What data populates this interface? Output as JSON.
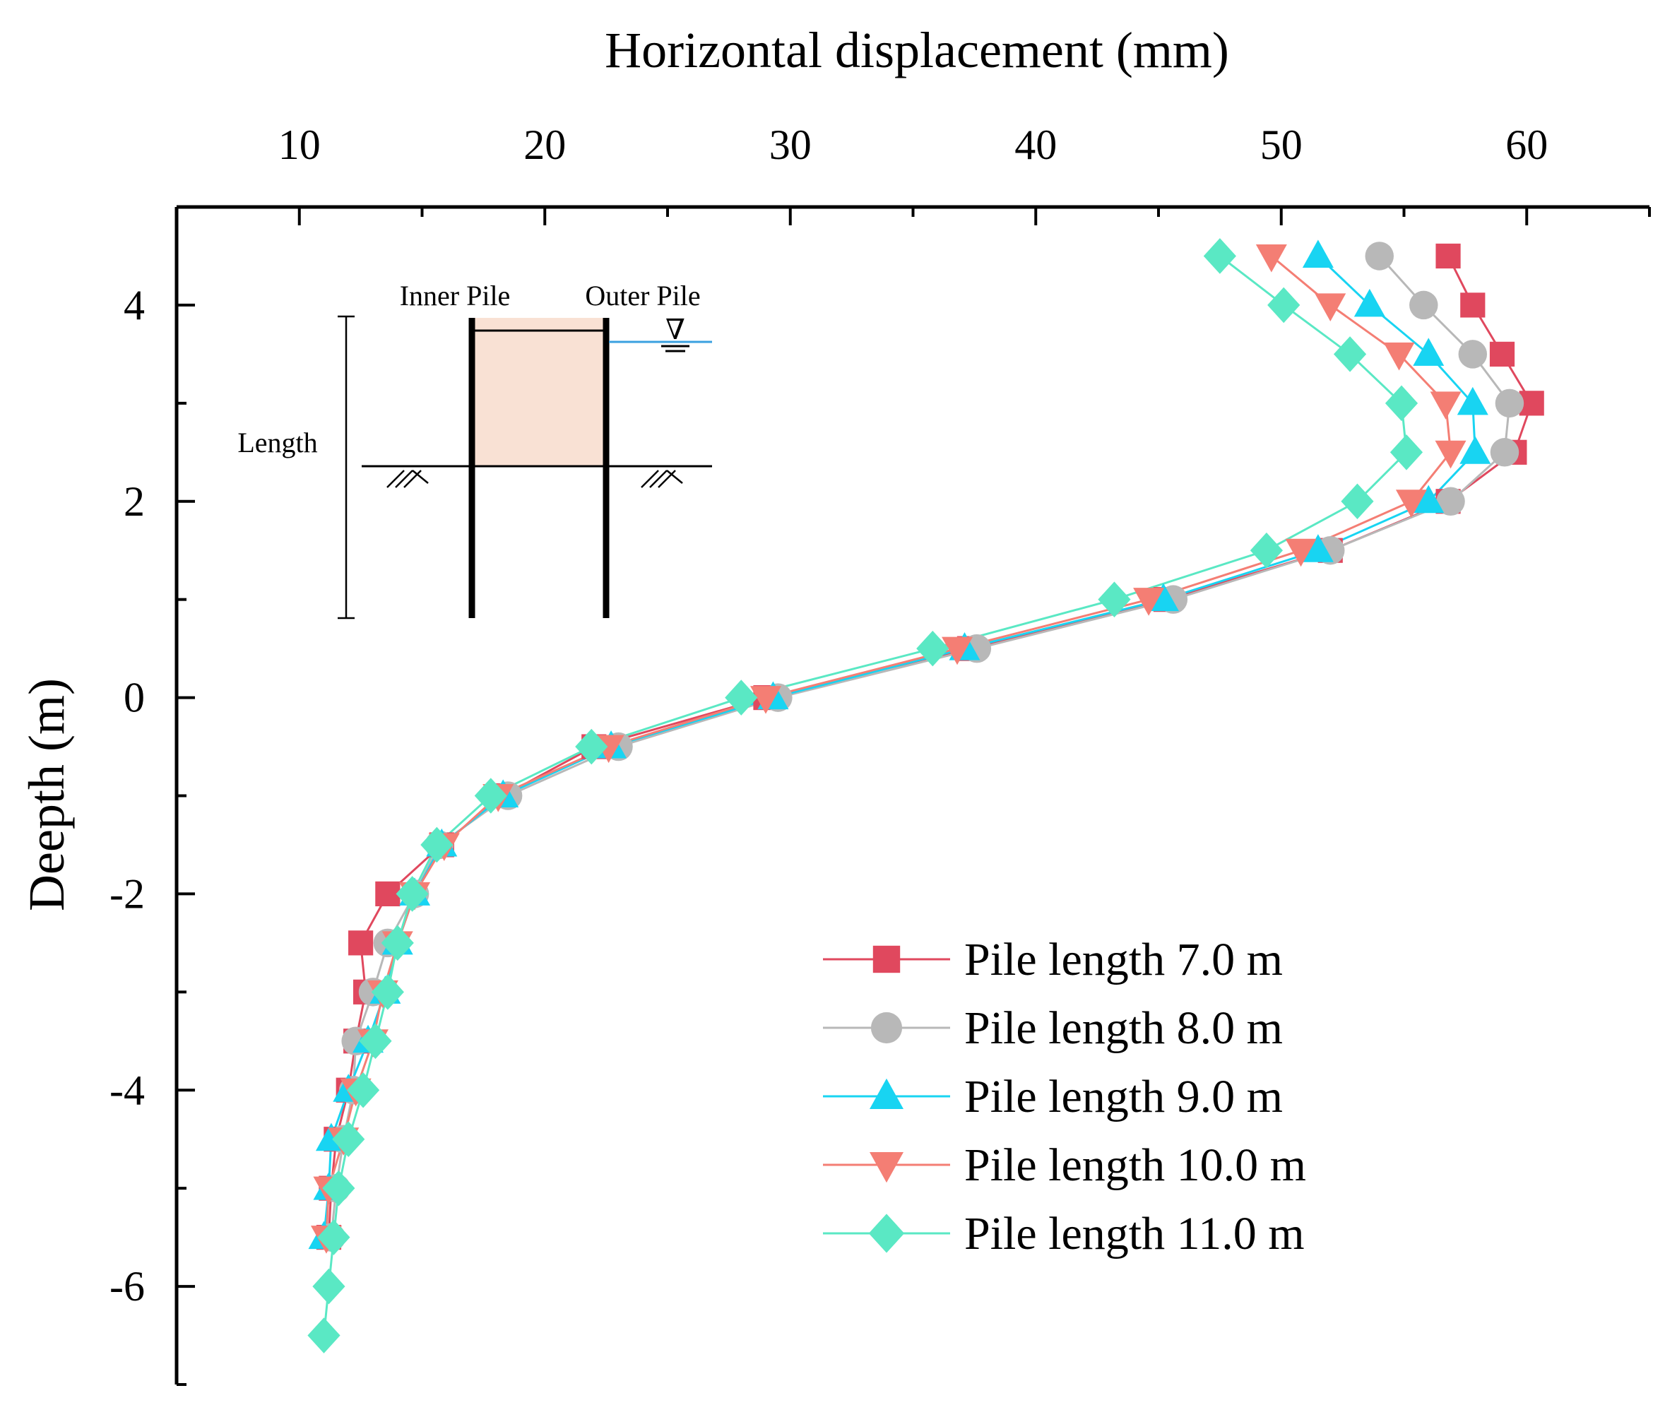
{
  "colors": {
    "pile_7": "#e0485e",
    "pile_8": "#b8b8b8",
    "pile_9": "#18d4f2",
    "pile_10": "#f47e74",
    "pile_11": "#5ae8c4",
    "inset_fill": "#f9e1d4",
    "water_line": "#3aa0e0"
  },
  "chart_data": {
    "type": "line",
    "title": "",
    "xlabel": "Horizontal displacement (mm)",
    "ylabel": "Deepth (m)",
    "xlim": [
      5,
      65
    ],
    "ylim": [
      -7,
      5
    ],
    "x_axis_position": "top",
    "x_ticks": [
      10,
      20,
      30,
      40,
      50,
      60
    ],
    "x_tick_labels": [
      "10",
      "20",
      "30",
      "40",
      "50",
      "60"
    ],
    "y_ticks": [
      -6,
      -4,
      -2,
      0,
      2,
      4
    ],
    "y_tick_labels": [
      "-6",
      "-4",
      "-2",
      "0",
      "2",
      "4"
    ],
    "legend_position": "bottom-right",
    "series": [
      {
        "name": "Pile length 7.0 m",
        "color_key": "pile_7",
        "marker": "square",
        "points": [
          [
            56.8,
            4.5
          ],
          [
            57.8,
            4.0
          ],
          [
            59.0,
            3.5
          ],
          [
            60.2,
            3.0
          ],
          [
            59.5,
            2.5
          ],
          [
            56.8,
            2.0
          ],
          [
            52.0,
            1.5
          ],
          [
            45.3,
            1.0
          ],
          [
            37.3,
            0.5
          ],
          [
            29.0,
            0.0
          ],
          [
            22.0,
            -0.5
          ],
          [
            18.3,
            -1.0
          ],
          [
            15.8,
            -1.5
          ],
          [
            13.6,
            -2.0
          ],
          [
            12.5,
            -2.5
          ],
          [
            12.7,
            -3.0
          ],
          [
            12.3,
            -3.5
          ],
          [
            12.0,
            -4.0
          ],
          [
            11.5,
            -4.5
          ],
          [
            11.3,
            -5.0
          ],
          [
            11.2,
            -5.5
          ]
        ]
      },
      {
        "name": "Pile length 8.0 m",
        "color_key": "pile_8",
        "marker": "circle",
        "points": [
          [
            54.0,
            4.5
          ],
          [
            55.8,
            4.0
          ],
          [
            57.8,
            3.5
          ],
          [
            59.3,
            3.0
          ],
          [
            59.1,
            2.5
          ],
          [
            56.9,
            2.0
          ],
          [
            52.0,
            1.5
          ],
          [
            45.6,
            1.0
          ],
          [
            37.6,
            0.5
          ],
          [
            29.5,
            0.0
          ],
          [
            23.0,
            -0.5
          ],
          [
            18.5,
            -1.0
          ],
          [
            15.7,
            -1.5
          ],
          [
            14.7,
            -2.0
          ],
          [
            13.6,
            -2.5
          ],
          [
            13.0,
            -3.0
          ],
          [
            12.3,
            -3.5
          ],
          [
            12.2,
            -4.0
          ],
          [
            11.8,
            -4.5
          ],
          [
            11.5,
            -5.0
          ],
          [
            11.3,
            -5.5
          ]
        ]
      },
      {
        "name": "Pile length 9.0 m",
        "color_key": "pile_9",
        "marker": "triangle-up",
        "points": [
          [
            51.5,
            4.5
          ],
          [
            53.6,
            4.0
          ],
          [
            56.0,
            3.5
          ],
          [
            57.8,
            3.0
          ],
          [
            57.9,
            2.5
          ],
          [
            56.0,
            2.0
          ],
          [
            51.5,
            1.5
          ],
          [
            45.2,
            1.0
          ],
          [
            37.1,
            0.5
          ],
          [
            29.3,
            0.0
          ],
          [
            22.7,
            -0.5
          ],
          [
            18.3,
            -1.0
          ],
          [
            15.8,
            -1.5
          ],
          [
            14.7,
            -2.0
          ],
          [
            14.0,
            -2.5
          ],
          [
            13.5,
            -3.0
          ],
          [
            12.8,
            -3.5
          ],
          [
            12.0,
            -4.0
          ],
          [
            11.3,
            -4.5
          ],
          [
            11.2,
            -5.0
          ],
          [
            11.0,
            -5.5
          ]
        ]
      },
      {
        "name": "Pile length 10.0 m",
        "color_key": "pile_10",
        "marker": "triangle-down",
        "points": [
          [
            49.6,
            4.5
          ],
          [
            52.0,
            4.0
          ],
          [
            54.8,
            3.5
          ],
          [
            56.7,
            3.0
          ],
          [
            56.9,
            2.5
          ],
          [
            55.3,
            2.0
          ],
          [
            50.8,
            1.5
          ],
          [
            44.6,
            1.0
          ],
          [
            36.8,
            0.5
          ],
          [
            29.0,
            0.0
          ],
          [
            22.6,
            -0.5
          ],
          [
            18.1,
            -1.0
          ],
          [
            15.9,
            -1.5
          ],
          [
            14.7,
            -2.0
          ],
          [
            14.0,
            -2.5
          ],
          [
            13.4,
            -3.0
          ],
          [
            13.0,
            -3.5
          ],
          [
            12.3,
            -4.0
          ],
          [
            11.8,
            -4.5
          ],
          [
            11.2,
            -5.0
          ],
          [
            11.1,
            -5.5
          ]
        ]
      },
      {
        "name": "Pile length 11.0 m",
        "color_key": "pile_11",
        "marker": "diamond",
        "points": [
          [
            47.5,
            4.5
          ],
          [
            50.1,
            4.0
          ],
          [
            52.8,
            3.5
          ],
          [
            54.9,
            3.0
          ],
          [
            55.1,
            2.5
          ],
          [
            53.1,
            2.0
          ],
          [
            49.4,
            1.5
          ],
          [
            43.2,
            1.0
          ],
          [
            35.8,
            0.5
          ],
          [
            28.0,
            0.0
          ],
          [
            21.9,
            -0.5
          ],
          [
            17.8,
            -1.0
          ],
          [
            15.6,
            -1.5
          ],
          [
            14.6,
            -2.0
          ],
          [
            14.0,
            -2.5
          ],
          [
            13.6,
            -3.0
          ],
          [
            13.1,
            -3.5
          ],
          [
            12.6,
            -4.0
          ],
          [
            12.0,
            -4.5
          ],
          [
            11.6,
            -5.0
          ],
          [
            11.4,
            -5.5
          ],
          [
            11.2,
            -6.0
          ],
          [
            11.0,
            -6.5
          ]
        ]
      }
    ]
  },
  "inset": {
    "inner_pile_label": "Inner Pile",
    "outer_pile_label": "Outer Pile",
    "length_label": "Length",
    "water_symbol": "∇"
  }
}
